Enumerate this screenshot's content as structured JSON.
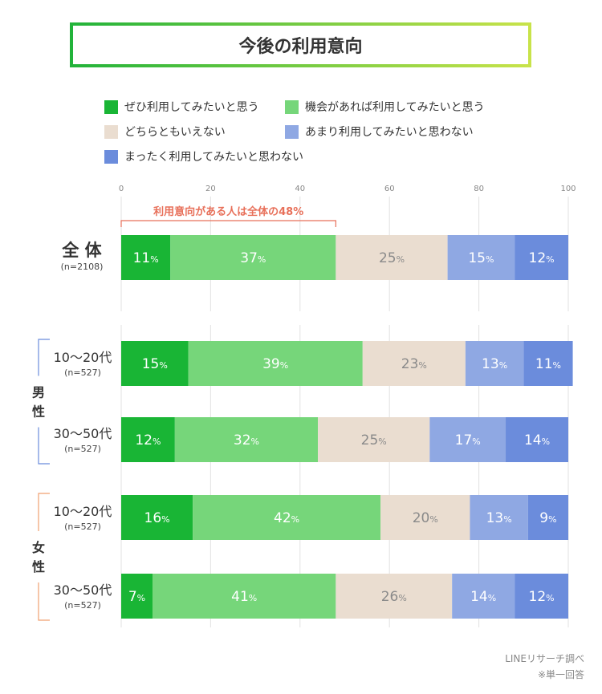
{
  "chart_data": {
    "type": "bar",
    "orientation": "horizontal",
    "stacked": true,
    "title": "今後の利用意向",
    "xlim": [
      0,
      100
    ],
    "xticks": [
      0,
      20,
      40,
      60,
      80,
      100
    ],
    "tick_labels": [
      "0",
      "20",
      "40",
      "60",
      "80",
      "100"
    ],
    "annotation": "利用意向がある人は全体の48%",
    "annotation_range": [
      0,
      48
    ],
    "series": [
      {
        "name": "ぜひ利用してみたいと思う",
        "color": "#19b535",
        "label_color": "#ffffff"
      },
      {
        "name": "機会があれば利用してみたいと思う",
        "color": "#76d67a",
        "label_color": "#ffffff"
      },
      {
        "name": "どちらともいえない",
        "color": "#eaddd0",
        "label_color": "#8a8a8a"
      },
      {
        "name": "あまり利用してみたいと思わない",
        "color": "#8fa8e3",
        "label_color": "#ffffff"
      },
      {
        "name": "まったく利用してみたいと思わない",
        "color": "#6b8cdc",
        "label_color": "#ffffff"
      }
    ],
    "rows": [
      {
        "label": "全 体",
        "n": "(n=2108)",
        "values": [
          11,
          37,
          25,
          15,
          12
        ]
      },
      {
        "label": "10〜20代",
        "n": "(n=527)",
        "values": [
          15,
          39,
          23,
          13,
          11
        ]
      },
      {
        "label": "30〜50代",
        "n": "(n=527)",
        "values": [
          12,
          32,
          25,
          17,
          14
        ]
      },
      {
        "label": "10〜20代",
        "n": "(n=527)",
        "values": [
          16,
          42,
          20,
          13,
          9
        ]
      },
      {
        "label": "30〜50代",
        "n": "(n=527)",
        "values": [
          7,
          41,
          26,
          14,
          12
        ]
      }
    ],
    "groups": [
      {
        "label": "男\n性",
        "color": "#6b8cdc"
      },
      {
        "label": "女\n性",
        "color": "#f0a070"
      }
    ],
    "percent_suffix": "%"
  },
  "credit": {
    "source": "LINEリサーチ調べ",
    "note": "※単一回答"
  }
}
